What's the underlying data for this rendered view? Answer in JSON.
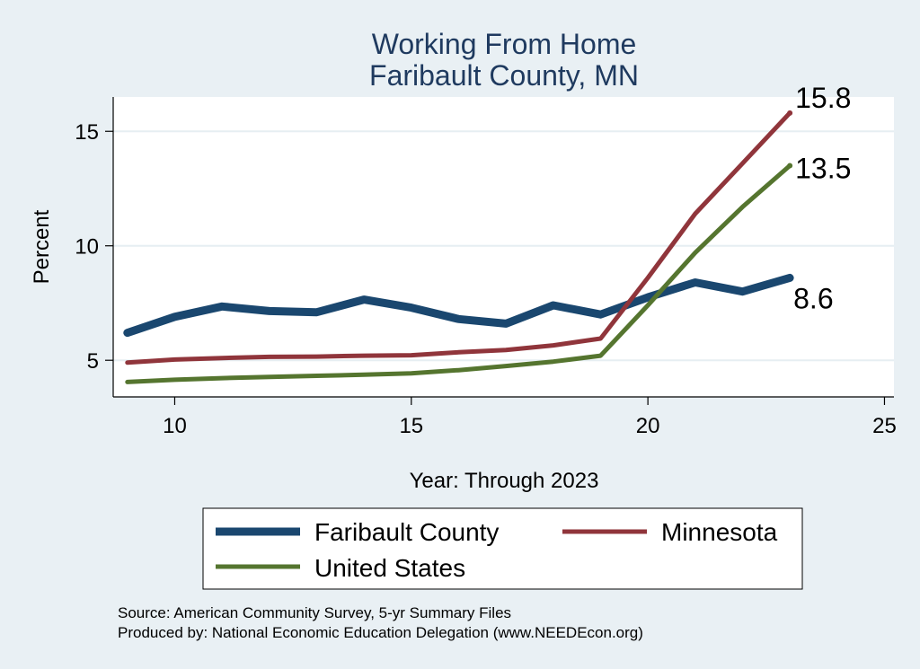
{
  "chart_data": {
    "type": "line",
    "title": [
      "Working From Home",
      "Faribault County, MN"
    ],
    "xlabel": "Year: Through 2023",
    "ylabel": "Percent",
    "xlim": [
      8.7,
      25.2
    ],
    "ylim": [
      3.4,
      16.5
    ],
    "xticks": [
      10,
      15,
      20,
      25
    ],
    "yticks": [
      5,
      10,
      15
    ],
    "grid": true,
    "legend_placement": "bottom",
    "x": [
      9,
      10,
      11,
      12,
      13,
      14,
      15,
      16,
      17,
      18,
      19,
      20,
      21,
      22,
      23
    ],
    "series": [
      {
        "name": "Faribault County",
        "color": "#1a476f",
        "values": [
          6.2,
          6.9,
          7.35,
          7.15,
          7.1,
          7.65,
          7.3,
          6.8,
          6.6,
          7.4,
          7.0,
          7.75,
          8.4,
          8.0,
          8.6
        ],
        "end_label": "8.6"
      },
      {
        "name": "Minnesota",
        "color": "#90353b",
        "values": [
          4.9,
          5.03,
          5.1,
          5.15,
          5.16,
          5.2,
          5.22,
          5.35,
          5.45,
          5.65,
          5.95,
          8.6,
          11.4,
          13.6,
          15.8
        ],
        "end_label": "15.8"
      },
      {
        "name": "United States",
        "color": "#55752f",
        "values": [
          4.05,
          4.15,
          4.22,
          4.27,
          4.32,
          4.37,
          4.43,
          4.57,
          4.75,
          4.94,
          5.2,
          7.4,
          9.7,
          11.7,
          13.5
        ],
        "end_label": "13.5"
      }
    ]
  },
  "footer": {
    "source_line": "Source: American Community Survey, 5-yr Summary Files",
    "produced_line": "Produced by: National Economic Education Delegation (www.NEEDEcon.org)"
  }
}
